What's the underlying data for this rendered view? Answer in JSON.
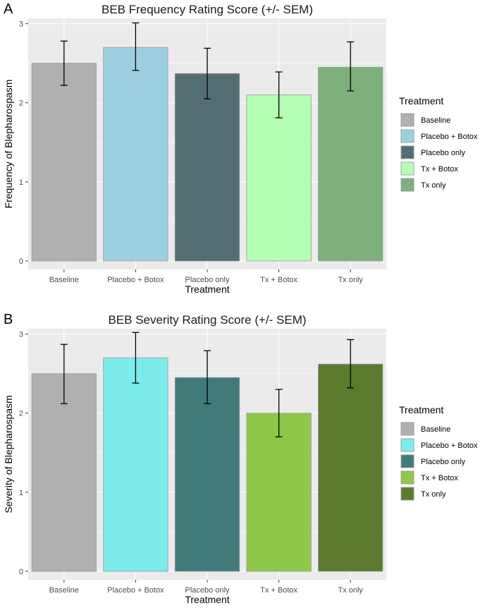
{
  "chart_data": [
    {
      "type": "bar",
      "panel_label": "A",
      "title": "BEB Frequency Rating Score (+/- SEM)",
      "xlabel": "Treatment",
      "ylabel": "Frequency of Blepharospasm",
      "ylim": [
        0,
        3.05
      ],
      "yticks": [
        0,
        1,
        2,
        3
      ],
      "grid": true,
      "legend_title": "Treatment",
      "legend_position": "right",
      "categories": [
        "Baseline",
        "Placebo + Botox",
        "Placebo only",
        "Tx + Botox",
        "Tx only"
      ],
      "values": [
        2.5,
        2.7,
        2.37,
        2.1,
        2.45
      ],
      "error_low": [
        2.22,
        2.41,
        2.05,
        1.81,
        2.15
      ],
      "error_high": [
        2.78,
        3.01,
        2.69,
        2.39,
        2.77
      ],
      "colors": [
        "#b0b0b0",
        "#9ecfe0",
        "#536e73",
        "#b3ffb3",
        "#7db07d"
      ]
    },
    {
      "type": "bar",
      "panel_label": "B",
      "title": "BEB Severity Rating Score (+/- SEM)",
      "xlabel": "Treatment",
      "ylabel": "Severity of Blepharospasm",
      "ylim": [
        0,
        3.05
      ],
      "yticks": [
        0,
        1,
        2,
        3
      ],
      "grid": true,
      "legend_title": "Treatment",
      "legend_position": "right",
      "categories": [
        "Baseline",
        "Placebo + Botox",
        "Placebo only",
        "Tx + Botox",
        "Tx only"
      ],
      "values": [
        2.5,
        2.7,
        2.45,
        2.0,
        2.62
      ],
      "error_low": [
        2.12,
        2.38,
        2.12,
        1.7,
        2.32
      ],
      "error_high": [
        2.87,
        3.02,
        2.79,
        2.3,
        2.93
      ],
      "colors": [
        "#b0b0b0",
        "#7debeb",
        "#417a7a",
        "#8fc74a",
        "#5b7a2e"
      ]
    }
  ]
}
